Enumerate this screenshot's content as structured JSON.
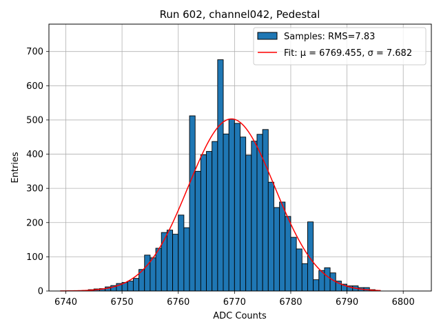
{
  "chart_data": {
    "type": "bar",
    "title": "Run 602, channel042, Pedestal",
    "xlabel": "ADC Counts",
    "ylabel": "Entries",
    "xlim": [
      6737,
      6805
    ],
    "ylim": [
      0,
      780
    ],
    "xticks": [
      6740,
      6750,
      6760,
      6770,
      6780,
      6790,
      6800
    ],
    "yticks": [
      0,
      100,
      200,
      300,
      400,
      500,
      600,
      700
    ],
    "grid": true,
    "legend_position": "top-right",
    "legend": [
      {
        "label": "Samples: RMS=7.83",
        "kind": "patch"
      },
      {
        "label": "Fit: μ = 6769.455, σ = 7.682",
        "kind": "line"
      }
    ],
    "histogram": {
      "bin_width": 1,
      "bin_starts": [
        6742,
        6743,
        6744,
        6745,
        6746,
        6747,
        6748,
        6749,
        6750,
        6751,
        6752,
        6753,
        6754,
        6755,
        6756,
        6757,
        6758,
        6759,
        6760,
        6761,
        6762,
        6763,
        6764,
        6765,
        6766,
        6767,
        6768,
        6769,
        6770,
        6771,
        6772,
        6773,
        6774,
        6775,
        6776,
        6777,
        6778,
        6779,
        6780,
        6781,
        6782,
        6783,
        6784,
        6785,
        6786,
        6787,
        6788,
        6789,
        6790,
        6791,
        6792,
        6793,
        6794
      ],
      "counts": [
        1,
        2,
        4,
        6,
        7,
        12,
        16,
        22,
        25,
        29,
        37,
        63,
        105,
        97,
        125,
        171,
        178,
        166,
        222,
        185,
        512,
        350,
        398,
        408,
        437,
        676,
        459,
        502,
        490,
        450,
        397,
        438,
        458,
        472,
        318,
        244,
        260,
        218,
        157,
        123,
        80,
        202,
        33,
        60,
        68,
        53,
        29,
        20,
        15,
        15,
        10,
        10,
        4
      ],
      "color": "#1f77b4",
      "edge_color": "#000000"
    },
    "fit": {
      "mu": 6769.455,
      "sigma": 7.682,
      "amplitude": 503,
      "x_range": [
        6739,
        6796
      ],
      "color": "#ff0000"
    }
  }
}
